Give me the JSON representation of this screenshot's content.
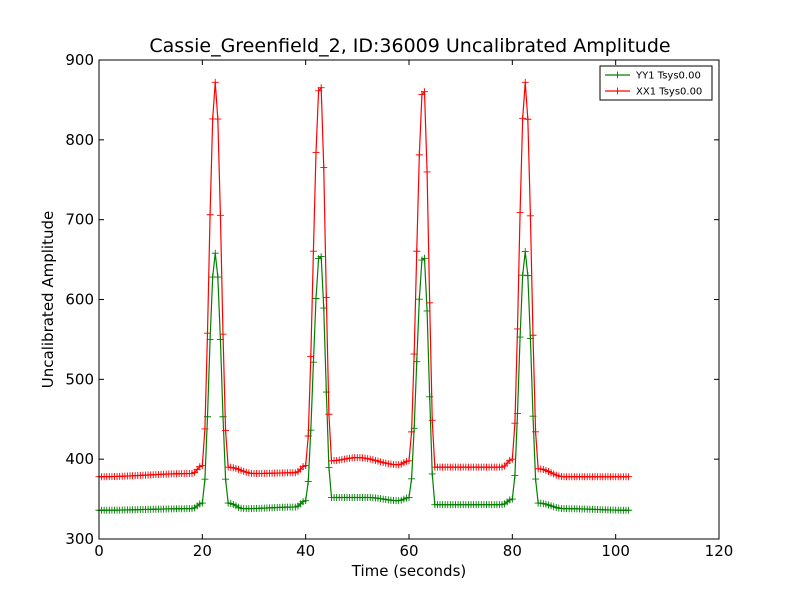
{
  "chart_data": {
    "type": "line",
    "title": "Cassie_Greenfield_2, ID:36009 Uncalibrated Amplitude",
    "xlabel": "Time (seconds)",
    "ylabel": "Uncalibrated Amplitude",
    "xlim": [
      0,
      120
    ],
    "ylim": [
      300,
      900
    ],
    "x_ticks": [
      0,
      20,
      40,
      60,
      80,
      100,
      120
    ],
    "y_ticks": [
      300,
      400,
      500,
      600,
      700,
      800,
      900
    ],
    "grid": false,
    "legend_position": "top-right",
    "marker": "+",
    "sample_interval": 0.5,
    "series": [
      {
        "name": "YY1 Tsys0.00",
        "color": "#008000",
        "profile": [
          [
            0,
            336
          ],
          [
            18,
            338
          ],
          [
            20,
            345
          ],
          [
            22.5,
            658
          ],
          [
            25,
            345
          ],
          [
            28,
            338
          ],
          [
            38,
            340
          ],
          [
            40,
            348
          ],
          [
            42.8,
            660
          ],
          [
            45,
            352
          ],
          [
            52,
            352
          ],
          [
            58,
            348
          ],
          [
            60,
            352
          ],
          [
            62.8,
            658
          ],
          [
            65,
            343
          ],
          [
            78,
            343
          ],
          [
            80,
            350
          ],
          [
            82.5,
            660
          ],
          [
            85,
            345
          ],
          [
            90,
            338
          ],
          [
            102.5,
            336
          ]
        ]
      },
      {
        "name": "XX1 Tsys0.00",
        "color": "#ff0000",
        "profile": [
          [
            0,
            378
          ],
          [
            18,
            382
          ],
          [
            20,
            392
          ],
          [
            22.5,
            872
          ],
          [
            25,
            390
          ],
          [
            30,
            382
          ],
          [
            38,
            383
          ],
          [
            40,
            392
          ],
          [
            42.8,
            875
          ],
          [
            45,
            398
          ],
          [
            50,
            402
          ],
          [
            58,
            393
          ],
          [
            60,
            398
          ],
          [
            62.8,
            870
          ],
          [
            65,
            390
          ],
          [
            78,
            390
          ],
          [
            80,
            400
          ],
          [
            82.5,
            872
          ],
          [
            85,
            388
          ],
          [
            90,
            378
          ],
          [
            102.5,
            378
          ]
        ]
      }
    ]
  }
}
